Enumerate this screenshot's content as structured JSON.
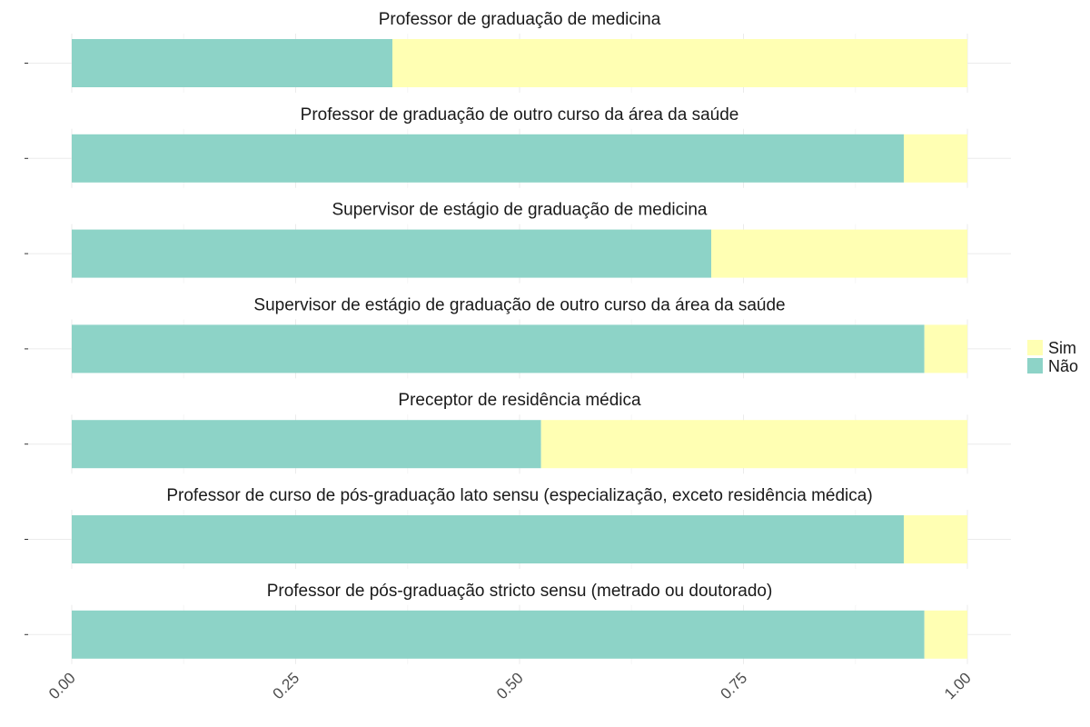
{
  "chart_data": {
    "type": "bar",
    "orientation": "horizontal",
    "stacked": true,
    "grid": true,
    "legend_position": "right",
    "xlim": [
      0,
      1
    ],
    "x_ticks": [
      "0.00",
      "0.25",
      "0.50",
      "0.75",
      "1.00"
    ],
    "legend": [
      {
        "name": "Sim",
        "color": "#FFFFB3"
      },
      {
        "name": "Não",
        "color": "#8DD3C7"
      }
    ],
    "categories": [
      "Professor de graduação de medicina",
      "Professor de graduação de outro curso da área da saúde",
      "Supervisor de estágio de graduação de medicina",
      "Supervisor de estágio de graduação de outro curso da área da saúde",
      "Preceptor de residência médica",
      "Professor de curso de pós-graduação lato sensu (especialização, exceto residência médica)",
      "Professor de pós-graduação stricto sensu (metrado ou doutorado)"
    ],
    "series": [
      {
        "name": "Não",
        "color": "#8DD3C7",
        "values": [
          0.358,
          0.929,
          0.714,
          0.952,
          0.524,
          0.929,
          0.952
        ]
      },
      {
        "name": "Sim",
        "color": "#FFFFB3",
        "values": [
          0.642,
          0.071,
          0.286,
          0.048,
          0.476,
          0.071,
          0.048
        ]
      }
    ]
  }
}
